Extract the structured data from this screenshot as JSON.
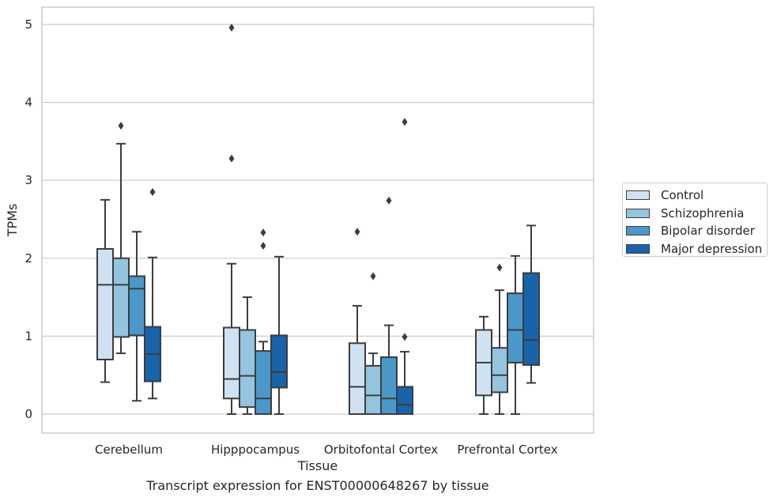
{
  "chart_data": {
    "type": "box",
    "caption": "Transcript expression for ENST00000648267 by tissue",
    "xlabel": "Tissue",
    "ylabel": "TPMs",
    "ylim": [
      -0.24,
      5.22
    ],
    "yticks": [
      0,
      1,
      2,
      3,
      4,
      5
    ],
    "grid": true,
    "legend_position": "right",
    "categories": [
      "Cerebellum",
      "Hipppocampus",
      "Orbitofontal Cortex",
      "Prefrontal Cortex"
    ],
    "series": [
      {
        "name": "Control",
        "color": "#d0e1f2",
        "boxes": [
          {
            "whislo": 0.41,
            "q1": 0.7,
            "med": 1.66,
            "q3": 2.12,
            "whishi": 2.75,
            "fliers": []
          },
          {
            "whislo": 0.0,
            "q1": 0.2,
            "med": 0.45,
            "q3": 1.11,
            "whishi": 1.93,
            "fliers": [
              3.28,
              4.96
            ]
          },
          {
            "whislo": 0.0,
            "q1": 0.0,
            "med": 0.35,
            "q3": 0.91,
            "whishi": 1.39,
            "fliers": [
              2.34
            ]
          },
          {
            "whislo": 0.0,
            "q1": 0.24,
            "med": 0.66,
            "q3": 1.08,
            "whishi": 1.25,
            "fliers": []
          }
        ]
      },
      {
        "name": "Schizophrenia",
        "color": "#94c4df",
        "boxes": [
          {
            "whislo": 0.78,
            "q1": 0.99,
            "med": 1.66,
            "q3": 2.0,
            "whishi": 3.47,
            "fliers": [
              3.7
            ]
          },
          {
            "whislo": 0.0,
            "q1": 0.09,
            "med": 0.49,
            "q3": 1.08,
            "whishi": 1.5,
            "fliers": []
          },
          {
            "whislo": 0.0,
            "q1": 0.0,
            "med": 0.24,
            "q3": 0.62,
            "whishi": 0.78,
            "fliers": [
              1.77
            ]
          },
          {
            "whislo": 0.0,
            "q1": 0.28,
            "med": 0.5,
            "q3": 0.85,
            "whishi": 1.59,
            "fliers": [
              1.88
            ]
          }
        ]
      },
      {
        "name": "Bipolar disorder",
        "color": "#4a98c9",
        "boxes": [
          {
            "whislo": 0.17,
            "q1": 1.01,
            "med": 1.61,
            "q3": 1.77,
            "whishi": 2.34,
            "fliers": []
          },
          {
            "whislo": 0.0,
            "q1": 0.0,
            "med": 0.2,
            "q3": 0.81,
            "whishi": 0.93,
            "fliers": [
              2.16,
              2.33
            ]
          },
          {
            "whislo": 0.0,
            "q1": 0.0,
            "med": 0.2,
            "q3": 0.73,
            "whishi": 1.14,
            "fliers": [
              2.74
            ]
          },
          {
            "whislo": 0.0,
            "q1": 0.66,
            "med": 1.08,
            "q3": 1.55,
            "whishi": 2.03,
            "fliers": []
          }
        ]
      },
      {
        "name": "Major depression",
        "color": "#1764ab",
        "boxes": [
          {
            "whislo": 0.2,
            "q1": 0.42,
            "med": 0.77,
            "q3": 1.12,
            "whishi": 2.01,
            "fliers": [
              2.85
            ]
          },
          {
            "whislo": 0.0,
            "q1": 0.34,
            "med": 0.54,
            "q3": 1.01,
            "whishi": 2.02,
            "fliers": []
          },
          {
            "whislo": 0.0,
            "q1": 0.0,
            "med": 0.12,
            "q3": 0.35,
            "whishi": 0.8,
            "fliers": [
              0.99,
              3.75
            ]
          },
          {
            "whislo": 0.4,
            "q1": 0.63,
            "med": 0.95,
            "q3": 1.81,
            "whishi": 2.42,
            "fliers": []
          }
        ]
      }
    ]
  }
}
